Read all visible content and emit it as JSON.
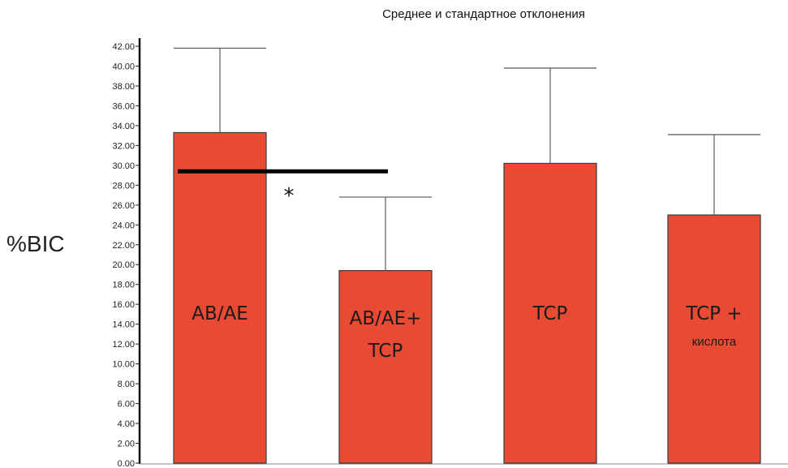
{
  "chart_data": {
    "type": "bar",
    "title": "Среднее и стандартное отклонения",
    "ylabel": "%BIC",
    "xlabel": "",
    "ylim": [
      0,
      42
    ],
    "y_ticks": [
      "0.00",
      "2.00",
      "4.00",
      "6.00",
      "8.00",
      "10.00",
      "12.00",
      "14.00",
      "16.00",
      "18.00",
      "20.00",
      "22.00",
      "24.00",
      "26.00",
      "28.00",
      "30.00",
      "32.00",
      "34.00",
      "36.00",
      "38.00",
      "40.00",
      "42.00"
    ],
    "bar_color": "#e84a34",
    "categories": [
      {
        "label_lines": [
          "AB/AE"
        ],
        "sublabel": ""
      },
      {
        "label_lines": [
          "AB/AE+",
          "TCP"
        ],
        "sublabel": ""
      },
      {
        "label_lines": [
          "TCP"
        ],
        "sublabel": ""
      },
      {
        "label_lines": [
          "TCP +"
        ],
        "sublabel": "кислота"
      }
    ],
    "values": [
      33.3,
      19.4,
      30.2,
      25.0
    ],
    "error_upper": [
      41.8,
      26.8,
      39.8,
      33.1
    ],
    "significance": {
      "from": 0,
      "to": 1,
      "level": 29.4,
      "marker": "*"
    }
  }
}
